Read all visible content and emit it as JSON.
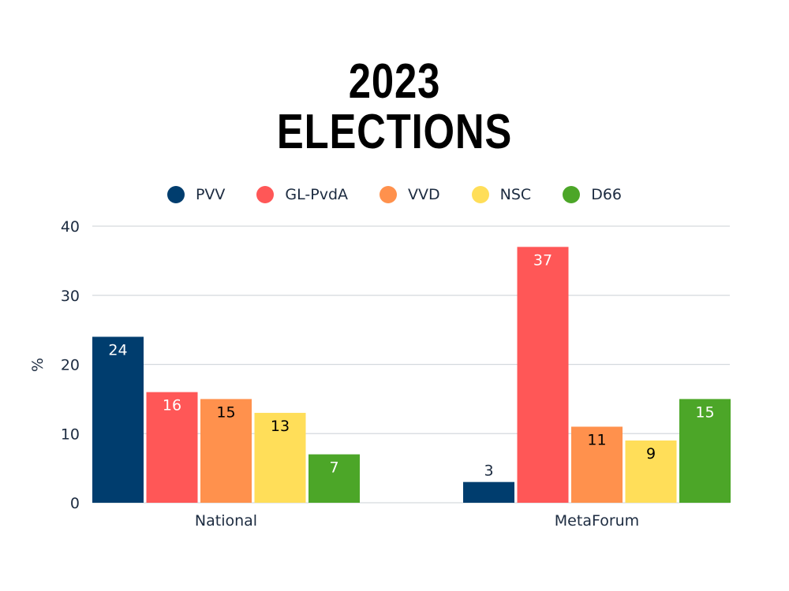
{
  "chart_data": {
    "type": "bar",
    "title": "2023 ELECTIONS",
    "title_lines": [
      "2023",
      "ELECTIONS"
    ],
    "xlabel": "",
    "ylabel": "%",
    "ylim": [
      0,
      40
    ],
    "yticks": [
      0,
      10,
      20,
      30,
      40
    ],
    "grid": true,
    "legend_position": "top-center",
    "categories": [
      "National",
      "MetaForum"
    ],
    "series": [
      {
        "name": "PVV",
        "color": "#003d6e",
        "label_color": "#ffffff",
        "values": [
          24,
          3
        ]
      },
      {
        "name": "GL-PvdA",
        "color": "#ff5757",
        "label_color": "#ffffff",
        "values": [
          16,
          37
        ]
      },
      {
        "name": "VVD",
        "color": "#ff914d",
        "label_color": "#000000",
        "values": [
          15,
          11
        ]
      },
      {
        "name": "NSC",
        "color": "#ffde59",
        "label_color": "#000000",
        "values": [
          13,
          9
        ]
      },
      {
        "name": "D66",
        "color": "#4ca628",
        "label_color": "#ffffff",
        "values": [
          7,
          15
        ]
      }
    ]
  }
}
